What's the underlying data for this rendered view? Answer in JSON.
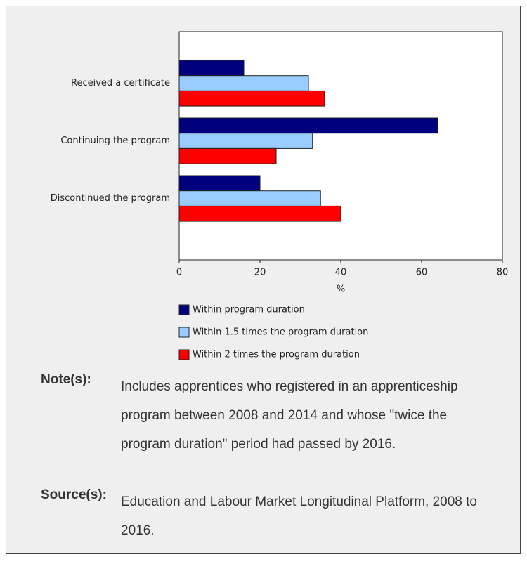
{
  "chart_data": {
    "type": "bar",
    "orientation": "horizontal",
    "categories": [
      "Received a certificate",
      "Continuing the program",
      "Discontinued the program"
    ],
    "series": [
      {
        "name": "Within program duration",
        "color": "#00007f",
        "values": [
          16,
          64,
          20
        ]
      },
      {
        "name": "Within 1.5 times the program duration",
        "color": "#99ccff",
        "values": [
          32,
          33,
          35
        ]
      },
      {
        "name": "Within 2 times the program duration",
        "color": "#ff0000",
        "values": [
          36,
          24,
          40
        ]
      }
    ],
    "x_label": "%",
    "xlim": [
      0,
      80
    ],
    "xticks": [
      0,
      20,
      40,
      60,
      80
    ],
    "grid": false,
    "legend": "bottom"
  },
  "notes": {
    "label": "Note(s):",
    "text": "Includes apprentices who registered in an apprenticeship program between 2008 and 2014 and whose \"twice the program duration\" period had passed by 2016."
  },
  "sources": {
    "label": "Source(s):",
    "text": "Education and Labour Market Longitudinal Platform, 2008 to 2016."
  }
}
